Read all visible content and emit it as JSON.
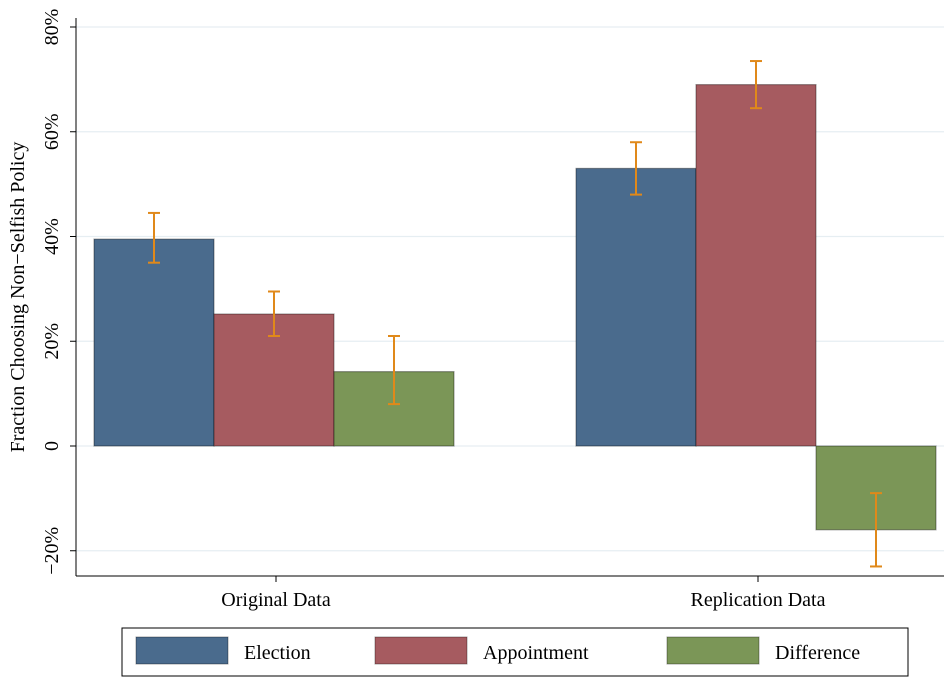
{
  "chart_data": {
    "type": "bar",
    "categories": [
      "Original Data",
      "Replication Data"
    ],
    "series": [
      {
        "name": "Election",
        "values": [
          39.5,
          53
        ],
        "ci_low": [
          35,
          48
        ],
        "ci_high": [
          44.5,
          58
        ],
        "color": "#4a6b8d"
      },
      {
        "name": "Appointment",
        "values": [
          25.2,
          69
        ],
        "ci_low": [
          21,
          64.5
        ],
        "ci_high": [
          29.5,
          73.5
        ],
        "color": "#a65b60"
      },
      {
        "name": "Difference",
        "values": [
          14.2,
          -16
        ],
        "ci_low": [
          8,
          -23
        ],
        "ci_high": [
          21,
          -9
        ],
        "color": "#7b9657"
      }
    ],
    "error_bar_color": "#e0891a",
    "ylabel": "Fraction Choosing Non−Selfish Policy",
    "xlabel": "",
    "ylim": [
      -24,
      84
    ],
    "yticks": [
      -20,
      0,
      20,
      40,
      60,
      80
    ],
    "ytick_labels": [
      "−20%",
      "0",
      "20%",
      "40%",
      "60%",
      "80%"
    ],
    "grid": true,
    "legend_position": "bottom"
  }
}
